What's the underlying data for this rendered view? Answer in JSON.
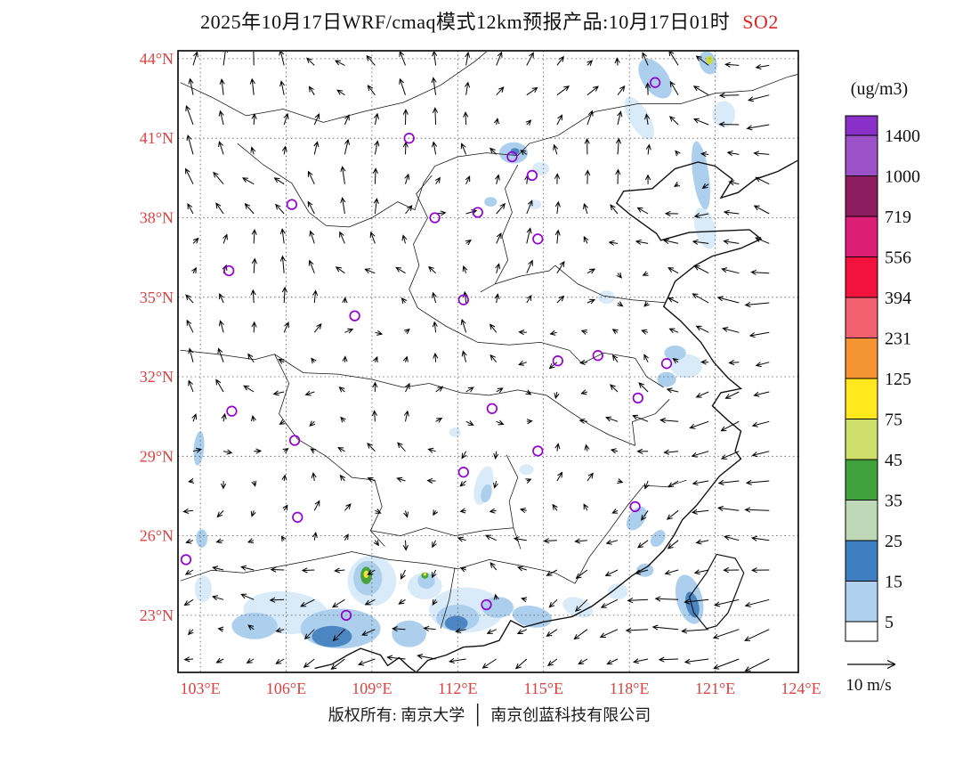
{
  "title": {
    "main": "2025年10月17日WRF/cmaq模式12km预报产品:10月17日01时",
    "species": "SO2"
  },
  "colors": {
    "axis_label_red": "#E04040",
    "species_red": "#E02424",
    "marker_purple": "#9400D3",
    "grid_line": "#555555",
    "boundary_black": "#111111"
  },
  "axes": {
    "lat_ticks": [
      {
        "value": 44,
        "label": "44°N"
      },
      {
        "value": 41,
        "label": "41°N"
      },
      {
        "value": 38,
        "label": "38°N"
      },
      {
        "value": 35,
        "label": "35°N"
      },
      {
        "value": 32,
        "label": "32°N"
      },
      {
        "value": 29,
        "label": "29°N"
      },
      {
        "value": 26,
        "label": "26°N"
      },
      {
        "value": 23,
        "label": "23°N"
      }
    ],
    "lon_ticks": [
      {
        "value": 103,
        "label": "103°E"
      },
      {
        "value": 106,
        "label": "106°E"
      },
      {
        "value": 109,
        "label": "109°E"
      },
      {
        "value": 112,
        "label": "112°E"
      },
      {
        "value": 115,
        "label": "115°E"
      },
      {
        "value": 118,
        "label": "118°E"
      },
      {
        "value": 121,
        "label": "121°E"
      },
      {
        "value": 124,
        "label": "124°E"
      }
    ]
  },
  "colorbar": {
    "units": "(ug/m3)",
    "tick_labels": [
      "1400",
      "1000",
      "719",
      "556",
      "394",
      "231",
      "125",
      "75",
      "45",
      "35",
      "25",
      "15",
      "5"
    ],
    "segment_colors": [
      "#8B2FC9",
      "#9B51C8",
      "#8E1D5F",
      "#DD1E76",
      "#F2123B",
      "#F4616E",
      "#F59433",
      "#FFE81E",
      "#CFE06A",
      "#3FA03C",
      "#BFD8B8",
      "#3F7EC0",
      "#AFD0EE",
      "#FFFFFF"
    ]
  },
  "wind_legend": {
    "label": "10 m/s"
  },
  "footer": {
    "copyright": "版权所有: 南京大学",
    "divider": "│",
    "company": "南京创蓝科技有限公司"
  },
  "patch_colors": {
    "p5": "#D9EAF8",
    "p15": "#ACCFEE",
    "p25": "#4B86C2",
    "p45": "#49A33C",
    "p75": "#C8DB3C",
    "p125": "#F2E435"
  },
  "map_markers": [
    [
      118.9,
      43.1
    ],
    [
      110.3,
      41.0
    ],
    [
      113.9,
      40.3
    ],
    [
      114.6,
      39.6
    ],
    [
      106.2,
      38.5
    ],
    [
      111.2,
      38.0
    ],
    [
      112.7,
      38.2
    ],
    [
      114.8,
      37.2
    ],
    [
      104.0,
      36.0
    ],
    [
      112.2,
      34.9
    ],
    [
      108.4,
      34.3
    ],
    [
      115.5,
      32.6
    ],
    [
      116.9,
      32.8
    ],
    [
      119.3,
      32.5
    ],
    [
      118.3,
      31.2
    ],
    [
      104.1,
      30.7
    ],
    [
      113.2,
      30.8
    ],
    [
      106.3,
      29.6
    ],
    [
      114.8,
      29.2
    ],
    [
      112.2,
      28.4
    ],
    [
      118.2,
      27.1
    ],
    [
      106.4,
      26.7
    ],
    [
      102.5,
      25.1
    ],
    [
      108.1,
      23.0
    ],
    [
      113.0,
      23.4
    ]
  ],
  "pollution_patches": [
    [
      118.9,
      43.25,
      0.45,
      0.85,
      -35,
      "p15"
    ],
    [
      120.75,
      43.85,
      0.3,
      0.45,
      -20,
      "p15"
    ],
    [
      120.8,
      43.95,
      0.12,
      0.16,
      -20,
      "p75"
    ],
    [
      118.35,
      41.75,
      0.35,
      0.9,
      -30,
      "p5"
    ],
    [
      121.3,
      41.9,
      0.4,
      0.5,
      0,
      "p5"
    ],
    [
      120.5,
      39.6,
      0.28,
      1.3,
      -8,
      "p15"
    ],
    [
      120.65,
      37.6,
      0.35,
      0.8,
      -15,
      "p5"
    ],
    [
      113.95,
      40.45,
      0.5,
      0.4,
      0,
      "p15"
    ],
    [
      114.0,
      40.5,
      0.16,
      0.13,
      0,
      "p25"
    ],
    [
      114.9,
      39.85,
      0.3,
      0.25,
      0,
      "p5"
    ],
    [
      113.15,
      38.6,
      0.22,
      0.18,
      0,
      "p15"
    ],
    [
      114.7,
      38.5,
      0.22,
      0.18,
      0,
      "p5"
    ],
    [
      117.2,
      35.0,
      0.3,
      0.25,
      0,
      "p5"
    ],
    [
      120.0,
      32.4,
      0.55,
      0.45,
      0,
      "p5"
    ],
    [
      119.6,
      32.9,
      0.38,
      0.28,
      0,
      "p15"
    ],
    [
      119.3,
      31.9,
      0.33,
      0.28,
      0,
      "p15"
    ],
    [
      112.9,
      27.9,
      0.3,
      0.75,
      15,
      "p5"
    ],
    [
      113.0,
      27.6,
      0.18,
      0.35,
      15,
      "p15"
    ],
    [
      114.4,
      28.5,
      0.25,
      0.2,
      0,
      "p5"
    ],
    [
      111.9,
      29.9,
      0.2,
      0.18,
      0,
      "p5"
    ],
    [
      118.25,
      26.65,
      0.28,
      0.5,
      35,
      "p15"
    ],
    [
      119.0,
      25.9,
      0.22,
      0.35,
      35,
      "p15"
    ],
    [
      118.55,
      24.7,
      0.3,
      0.25,
      0,
      "p15"
    ],
    [
      117.6,
      23.9,
      0.35,
      0.3,
      0,
      "p5"
    ],
    [
      106.0,
      23.1,
      1.5,
      0.8,
      5,
      "p5"
    ],
    [
      104.9,
      22.6,
      0.8,
      0.5,
      0,
      "p15"
    ],
    [
      107.9,
      22.5,
      1.4,
      0.75,
      0,
      "p15"
    ],
    [
      107.6,
      22.2,
      0.7,
      0.4,
      0,
      "p25"
    ],
    [
      109.0,
      24.3,
      0.85,
      0.95,
      0,
      "p5"
    ],
    [
      108.85,
      24.4,
      0.5,
      0.65,
      0,
      "p15"
    ],
    [
      108.8,
      24.5,
      0.2,
      0.33,
      0,
      "p45"
    ],
    [
      108.8,
      24.55,
      0.09,
      0.14,
      0,
      "p125"
    ],
    [
      110.85,
      24.1,
      0.6,
      0.5,
      0,
      "p5"
    ],
    [
      110.9,
      24.3,
      0.3,
      0.3,
      0,
      "p15"
    ],
    [
      110.85,
      24.5,
      0.12,
      0.12,
      0,
      "p45"
    ],
    [
      110.85,
      24.55,
      0.05,
      0.06,
      0,
      "p125"
    ],
    [
      112.3,
      23.2,
      1.3,
      0.85,
      0,
      "p5"
    ],
    [
      112.0,
      22.9,
      0.75,
      0.5,
      0,
      "p15"
    ],
    [
      111.95,
      22.7,
      0.4,
      0.28,
      0,
      "p25"
    ],
    [
      113.4,
      23.3,
      0.55,
      0.4,
      0,
      "p15"
    ],
    [
      114.6,
      22.95,
      0.7,
      0.4,
      10,
      "p15"
    ],
    [
      116.2,
      23.3,
      0.55,
      0.35,
      20,
      "p5"
    ],
    [
      110.3,
      22.3,
      0.6,
      0.5,
      0,
      "p15"
    ],
    [
      120.1,
      23.6,
      0.45,
      0.95,
      -15,
      "p15"
    ],
    [
      120.2,
      23.4,
      0.22,
      0.5,
      -15,
      "p25"
    ],
    [
      102.95,
      29.3,
      0.18,
      0.65,
      5,
      "p15"
    ],
    [
      103.05,
      25.9,
      0.2,
      0.35,
      0,
      "p15"
    ],
    [
      103.1,
      24.0,
      0.3,
      0.5,
      0,
      "p5"
    ]
  ]
}
